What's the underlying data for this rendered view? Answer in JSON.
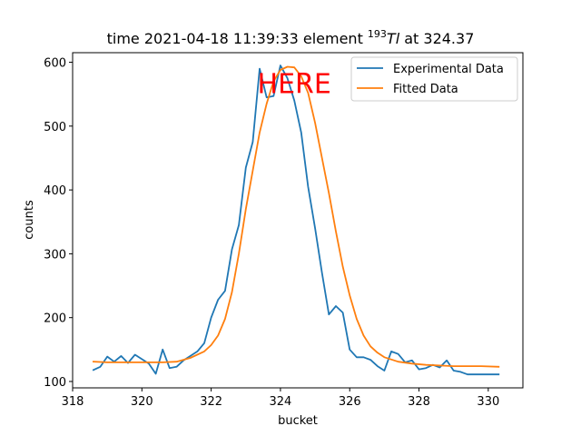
{
  "chart_data": {
    "type": "line",
    "title_prefix": "time 2021-04-18 11:39:33 element ",
    "title_mass": "193",
    "title_element": "Tl",
    "title_suffix": " at 324.37",
    "xlabel": "bucket",
    "ylabel": "counts",
    "xlim": [
      318,
      331
    ],
    "ylim": [
      90,
      615
    ],
    "xticks": [
      318,
      320,
      322,
      324,
      326,
      328,
      330
    ],
    "yticks": [
      100,
      200,
      300,
      400,
      500,
      600
    ],
    "annotation": {
      "text": "HERE",
      "x": 324.4,
      "y": 569,
      "color": "#ff0000"
    },
    "legend": {
      "position": "top-right"
    },
    "series": [
      {
        "name": "Experimental Data",
        "color": "#1f77b4",
        "x": [
          318.6,
          318.8,
          319.0,
          319.2,
          319.4,
          319.6,
          319.8,
          320.0,
          320.2,
          320.4,
          320.6,
          320.8,
          321.0,
          321.2,
          321.4,
          321.6,
          321.8,
          322.0,
          322.2,
          322.4,
          322.6,
          322.8,
          323.0,
          323.2,
          323.4,
          323.6,
          323.8,
          324.0,
          324.2,
          324.4,
          324.6,
          324.8,
          325.0,
          325.2,
          325.4,
          325.6,
          325.8,
          326.0,
          326.2,
          326.4,
          326.6,
          326.8,
          327.0,
          327.2,
          327.4,
          327.6,
          327.8,
          328.0,
          328.2,
          328.4,
          328.6,
          328.8,
          329.0,
          329.2,
          329.4,
          329.6,
          329.8,
          330.0,
          330.2,
          330.3
        ],
        "y": [
          118,
          123,
          139,
          131,
          140,
          129,
          142,
          135,
          128,
          112,
          150,
          121,
          123,
          133,
          140,
          147,
          160,
          200,
          228,
          242,
          307,
          345,
          435,
          475,
          590,
          545,
          547,
          595,
          575,
          540,
          490,
          405,
          340,
          270,
          205,
          218,
          208,
          150,
          138,
          138,
          134,
          124,
          117,
          147,
          143,
          130,
          133,
          119,
          121,
          126,
          122,
          133,
          117,
          115,
          111,
          111,
          111,
          111,
          111,
          111
        ]
      },
      {
        "name": "Fitted Data",
        "color": "#ff7f0e",
        "x": [
          318.6,
          319.0,
          319.4,
          319.8,
          320.2,
          320.6,
          321.0,
          321.4,
          321.8,
          322.0,
          322.2,
          322.4,
          322.6,
          322.8,
          323.0,
          323.2,
          323.4,
          323.6,
          323.8,
          324.0,
          324.2,
          324.4,
          324.6,
          324.8,
          325.0,
          325.2,
          325.4,
          325.6,
          325.8,
          326.0,
          326.2,
          326.4,
          326.6,
          326.8,
          327.0,
          327.4,
          327.8,
          328.2,
          328.6,
          329.0,
          329.4,
          329.8,
          330.3
        ],
        "y": [
          131,
          130,
          130,
          130,
          130,
          130,
          131,
          137,
          147,
          157,
          172,
          198,
          240,
          300,
          370,
          430,
          490,
          535,
          570,
          588,
          593,
          592,
          578,
          552,
          505,
          450,
          395,
          335,
          280,
          235,
          198,
          172,
          155,
          145,
          138,
          131,
          128,
          126,
          125,
          124,
          124,
          124,
          123
        ]
      }
    ]
  }
}
